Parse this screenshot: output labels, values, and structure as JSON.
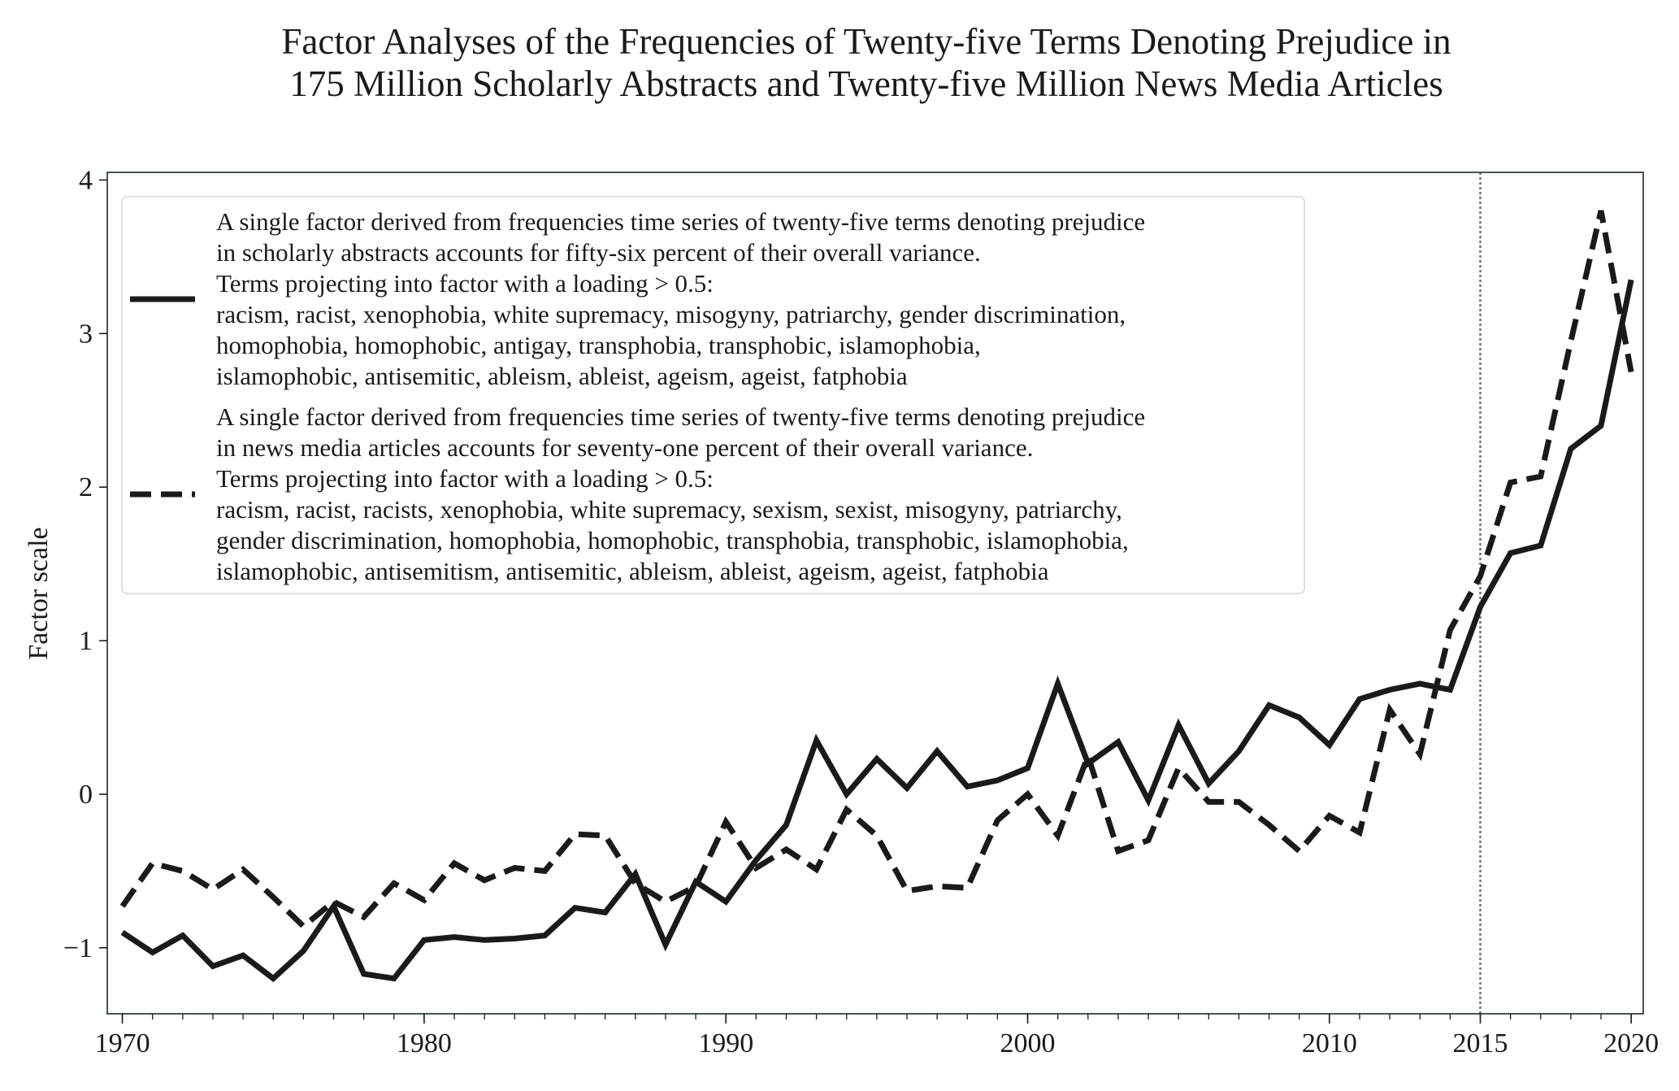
{
  "chart_data": {
    "type": "line",
    "title": [
      "Factor Analyses of the Frequencies of Twenty-five Terms Denoting Prejudice in",
      "175 Million Scholarly Abstracts and Twenty-five Million News Media Articles"
    ],
    "xlabel": "",
    "ylabel": "Factor scale",
    "xlim": [
      1969.5,
      2020.4
    ],
    "ylim": [
      -1.43,
      4.05
    ],
    "xticks": [
      1970,
      1980,
      1990,
      2000,
      2010,
      2015,
      2020
    ],
    "yticks": [
      -1,
      0,
      1,
      2,
      3,
      4
    ],
    "ytick_labels": [
      "−1",
      "0",
      "1",
      "2",
      "3",
      "4"
    ],
    "grid": false,
    "reference_line": {
      "x": 2015,
      "style": "dotted",
      "color": "#5a7a7a"
    },
    "legend_placement": "top-left",
    "x": [
      1970,
      1971,
      1972,
      1973,
      1974,
      1975,
      1976,
      1977,
      1978,
      1979,
      1980,
      1981,
      1982,
      1983,
      1984,
      1985,
      1986,
      1987,
      1988,
      1989,
      1990,
      1991,
      1992,
      1993,
      1994,
      1995,
      1996,
      1997,
      1998,
      1999,
      2000,
      2001,
      2002,
      2003,
      2004,
      2005,
      2006,
      2007,
      2008,
      2009,
      2010,
      2011,
      2012,
      2013,
      2014,
      2015,
      2016,
      2017,
      2018,
      2019,
      2020
    ],
    "series": [
      {
        "style": "solid",
        "color": "#1a1a1a",
        "legend_lines": [
          "A single factor derived from frequencies time series of twenty-five terms denoting prejudice",
          "in scholarly abstracts accounts for fifty-six percent of their overall variance.",
          "Terms projecting into factor with a loading > 0.5:",
          "racism, racist, xenophobia, white supremacy, misogyny, patriarchy, gender discrimination,",
          "homophobia, homophobic, antigay, transphobia, transphobic, islamophobia,",
          "islamophobic, antisemitic, ableism, ableist, ageism, ageist, fatphobia"
        ],
        "values": [
          -0.9,
          -1.03,
          -0.92,
          -1.12,
          -1.05,
          -1.2,
          -1.02,
          -0.73,
          -1.17,
          -1.2,
          -0.95,
          -0.93,
          -0.95,
          -0.94,
          -0.92,
          -0.74,
          -0.77,
          -0.52,
          -0.98,
          -0.57,
          -0.7,
          -0.43,
          -0.2,
          0.35,
          0.0,
          0.23,
          0.04,
          0.28,
          0.05,
          0.09,
          0.17,
          0.72,
          0.2,
          0.34,
          -0.04,
          0.45,
          0.07,
          0.28,
          0.58,
          0.5,
          0.32,
          0.62,
          0.68,
          0.72,
          0.68,
          1.22,
          1.57,
          1.62,
          2.25,
          2.4,
          3.35
        ]
      },
      {
        "style": "dashed",
        "color": "#1a1a1a",
        "legend_lines": [
          "A single factor derived from frequencies time series of twenty-five terms denoting prejudice",
          "in news media articles accounts for seventy-one percent of their overall variance.",
          "Terms projecting into factor with a loading > 0.5:",
          "racism, racist, racists, xenophobia, white supremacy, sexism, sexist, misogyny, patriarchy,",
          "gender discrimination, homophobia, homophobic, transphobia, transphobic, islamophobia,",
          "islamophobic, antisemitism, antisemitic, ableism, ableist, ageism, ageist, fatphobia"
        ],
        "values": [
          -0.73,
          -0.45,
          -0.5,
          -0.62,
          -0.49,
          -0.67,
          -0.86,
          -0.7,
          -0.8,
          -0.58,
          -0.69,
          -0.45,
          -0.56,
          -0.48,
          -0.5,
          -0.26,
          -0.27,
          -0.58,
          -0.7,
          -0.6,
          -0.18,
          -0.48,
          -0.36,
          -0.49,
          -0.1,
          -0.27,
          -0.63,
          -0.6,
          -0.61,
          -0.17,
          0.0,
          -0.27,
          0.25,
          -0.37,
          -0.3,
          0.17,
          -0.05,
          -0.05,
          -0.2,
          -0.37,
          -0.14,
          -0.25,
          0.55,
          0.26,
          1.07,
          1.42,
          2.03,
          2.07,
          2.95,
          3.8,
          2.75
        ]
      }
    ]
  }
}
